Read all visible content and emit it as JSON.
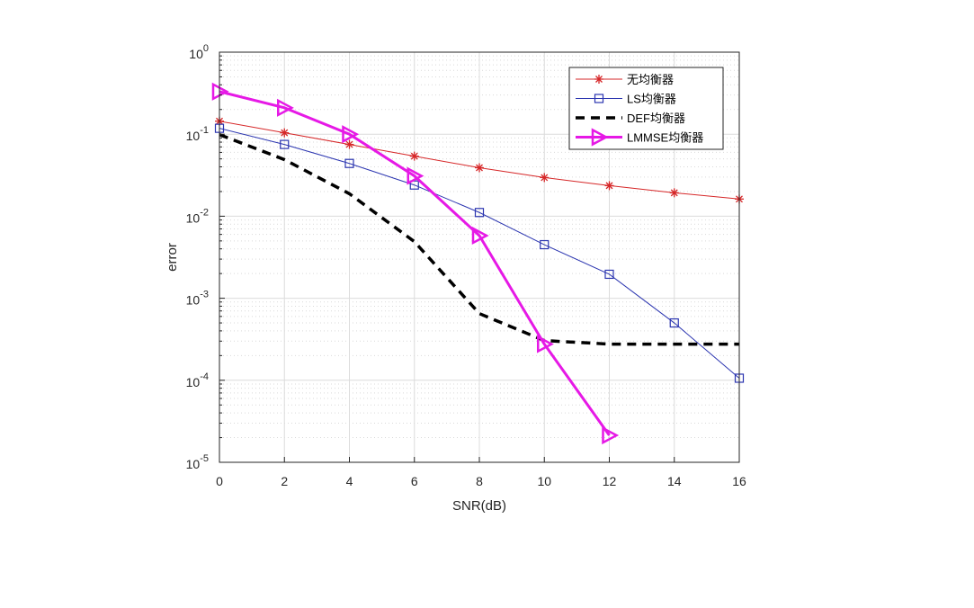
{
  "chart_data": {
    "type": "line",
    "title": "",
    "xlabel": "SNR(dB)",
    "ylabel": "error",
    "xlim": [
      0,
      16
    ],
    "ylim": [
      1e-05,
      1
    ],
    "yscale": "log",
    "grid": true,
    "minor_grid": true,
    "legend_position": "top-right",
    "x_ticks": [
      "0",
      "2",
      "4",
      "6",
      "8",
      "10",
      "12",
      "14",
      "16"
    ],
    "y_ticks": [
      {
        "base": "10",
        "exp": "-5"
      },
      {
        "base": "10",
        "exp": "-4"
      },
      {
        "base": "10",
        "exp": "-3"
      },
      {
        "base": "10",
        "exp": "-2"
      },
      {
        "base": "10",
        "exp": "-1"
      },
      {
        "base": "10",
        "exp": "0"
      }
    ],
    "series": [
      {
        "name": "无均衡器",
        "color": "#d62728",
        "marker": "asterisk",
        "style": "solid",
        "x": [
          0,
          2,
          4,
          6,
          8,
          10,
          12,
          14,
          16
        ],
        "y": [
          0.144,
          0.104,
          0.075,
          0.054,
          0.039,
          0.0296,
          0.0236,
          0.0193,
          0.0162
        ]
      },
      {
        "name": "LS均衡器",
        "color": "#2b35b0",
        "marker": "square",
        "style": "solid",
        "x": [
          0,
          2,
          4,
          6,
          8,
          10,
          12,
          14,
          16
        ],
        "y": [
          0.118,
          0.075,
          0.044,
          0.024,
          0.0111,
          0.0045,
          0.00196,
          0.0005,
          0.000106
        ]
      },
      {
        "name": "DEF均衡器",
        "color": "#000000",
        "marker": "none",
        "style": "dashed",
        "x": [
          0,
          2,
          4,
          6,
          8,
          10,
          12,
          14,
          16
        ],
        "y": [
          0.099,
          0.049,
          0.0188,
          0.0049,
          0.00065,
          0.000305,
          0.000276,
          0.000276,
          0.000276
        ]
      },
      {
        "name": "LMMSE均衡器",
        "color": "#e619e6",
        "marker": "triangle-right",
        "style": "solid",
        "x": [
          0,
          2,
          4,
          6,
          8,
          10,
          12
        ],
        "y": [
          0.331,
          0.21,
          0.1,
          0.031,
          0.0058,
          0.000276,
          2.13e-05
        ]
      }
    ]
  }
}
